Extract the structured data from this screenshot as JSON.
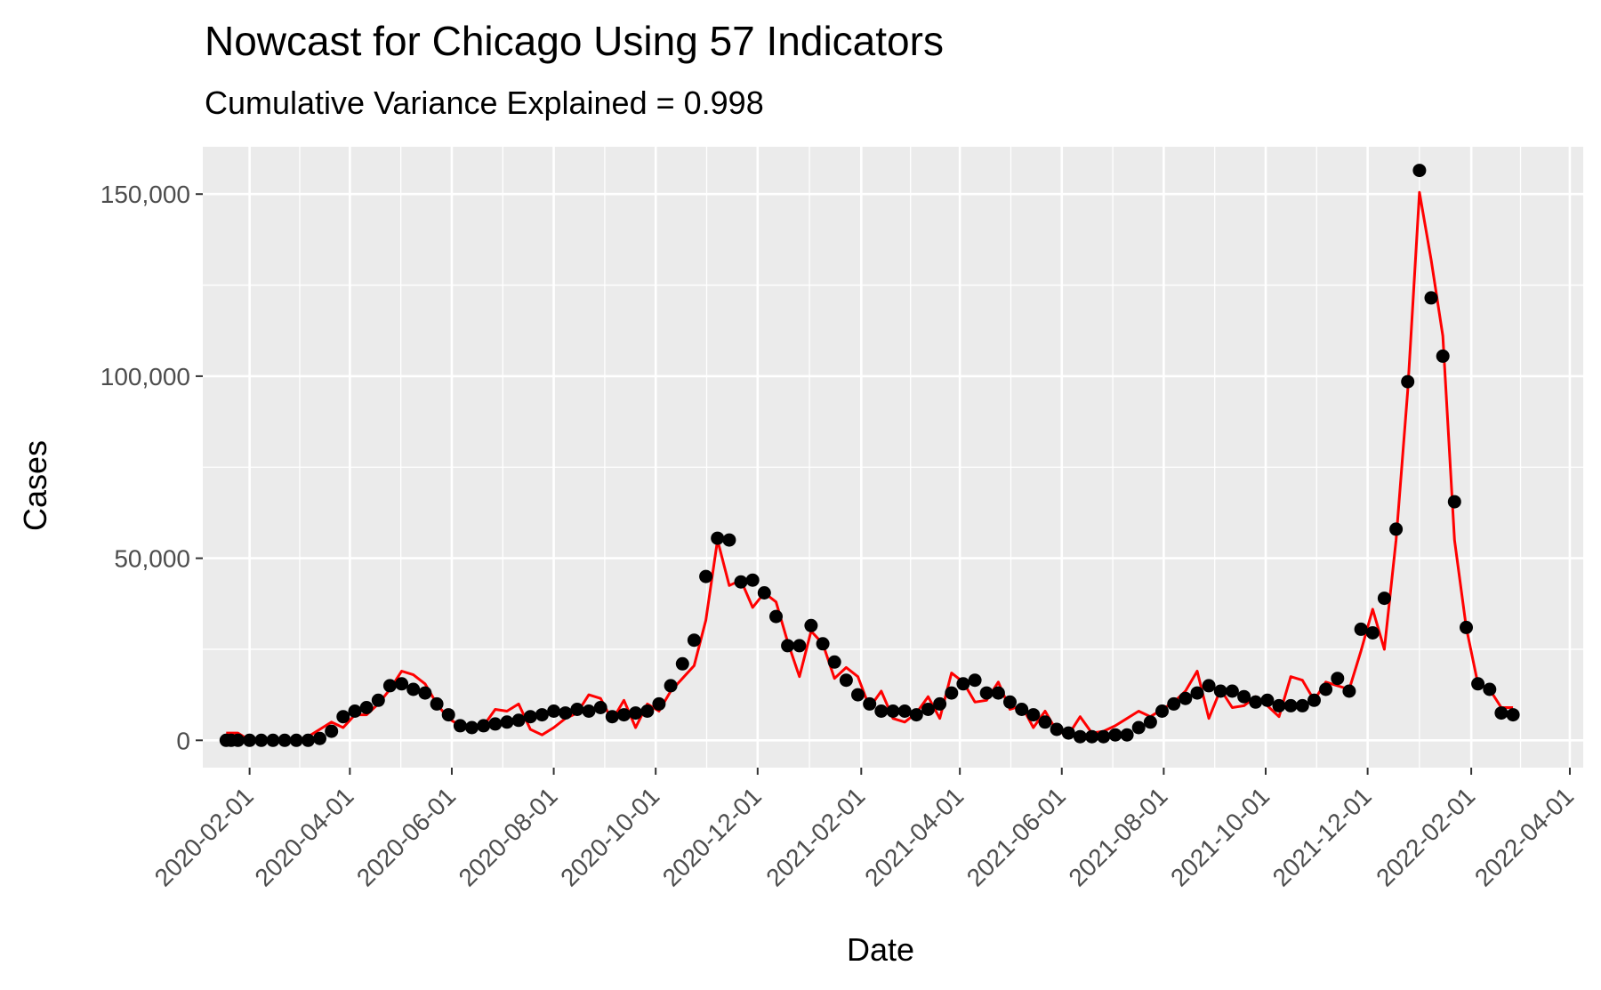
{
  "chart_data": {
    "type": "line",
    "title": "Nowcast for Chicago Using 57 Indicators",
    "subtitle": "Cumulative Variance Explained = 0.998",
    "xlabel": "Date",
    "ylabel": "Cases",
    "x_axis_type": "date",
    "xlim": [
      "2020-01-04",
      "2022-04-09"
    ],
    "ylim": [
      -7500,
      163000
    ],
    "grid": true,
    "legend": "none",
    "colors": {
      "panel_background": "#ebebeb",
      "grid": "#ffffff",
      "nowcast_line": "#ff0000",
      "observed_points": "#000000"
    },
    "x_ticks": [
      "2020-02-01",
      "2020-04-01",
      "2020-06-01",
      "2020-08-01",
      "2020-10-01",
      "2020-12-01",
      "2021-02-01",
      "2021-04-01",
      "2021-06-01",
      "2021-08-01",
      "2021-10-01",
      "2021-12-01",
      "2022-02-01",
      "2022-04-01"
    ],
    "x_tick_labels": [
      "2020-02-01",
      "2020-04-01",
      "2020-06-01",
      "2020-08-01",
      "2020-10-01",
      "2020-12-01",
      "2021-02-01",
      "2021-04-01",
      "2021-06-01",
      "2021-08-01",
      "2021-10-01",
      "2021-12-01",
      "2022-02-01",
      "2022-04-01"
    ],
    "y_ticks": [
      0,
      50000,
      100000,
      150000
    ],
    "y_tick_labels": [
      "0",
      "50,000",
      "100,000",
      "150,000"
    ],
    "observed": [
      [
        "2020-01-18",
        0
      ],
      [
        "2020-01-21",
        0
      ],
      [
        "2020-01-25",
        0
      ],
      [
        "2020-02-01",
        0
      ],
      [
        "2020-02-08",
        0
      ],
      [
        "2020-02-15",
        0
      ],
      [
        "2020-02-22",
        0
      ],
      [
        "2020-02-29",
        0
      ],
      [
        "2020-03-07",
        0
      ],
      [
        "2020-03-14",
        500
      ],
      [
        "2020-03-21",
        2500
      ],
      [
        "2020-03-28",
        6500
      ],
      [
        "2020-04-04",
        8000
      ],
      [
        "2020-04-11",
        9000
      ],
      [
        "2020-04-18",
        11000
      ],
      [
        "2020-04-25",
        15000
      ],
      [
        "2020-05-02",
        15500
      ],
      [
        "2020-05-09",
        14000
      ],
      [
        "2020-05-16",
        13000
      ],
      [
        "2020-05-23",
        10000
      ],
      [
        "2020-05-30",
        7000
      ],
      [
        "2020-06-06",
        4000
      ],
      [
        "2020-06-13",
        3500
      ],
      [
        "2020-06-20",
        4000
      ],
      [
        "2020-06-27",
        4500
      ],
      [
        "2020-07-04",
        5000
      ],
      [
        "2020-07-11",
        5500
      ],
      [
        "2020-07-18",
        6500
      ],
      [
        "2020-07-25",
        7000
      ],
      [
        "2020-08-01",
        8000
      ],
      [
        "2020-08-08",
        7500
      ],
      [
        "2020-08-15",
        8500
      ],
      [
        "2020-08-22",
        8000
      ],
      [
        "2020-08-29",
        9000
      ],
      [
        "2020-09-05",
        6500
      ],
      [
        "2020-09-12",
        7000
      ],
      [
        "2020-09-19",
        7500
      ],
      [
        "2020-09-26",
        8000
      ],
      [
        "2020-10-03",
        10000
      ],
      [
        "2020-10-10",
        15000
      ],
      [
        "2020-10-17",
        21000
      ],
      [
        "2020-10-24",
        27500
      ],
      [
        "2020-10-31",
        45000
      ],
      [
        "2020-11-07",
        55500
      ],
      [
        "2020-11-14",
        55000
      ],
      [
        "2020-11-21",
        43500
      ],
      [
        "2020-11-28",
        44000
      ],
      [
        "2020-12-05",
        40500
      ],
      [
        "2020-12-12",
        34000
      ],
      [
        "2020-12-19",
        26000
      ],
      [
        "2020-12-26",
        26000
      ],
      [
        "2021-01-02",
        31500
      ],
      [
        "2021-01-09",
        26500
      ],
      [
        "2021-01-16",
        21500
      ],
      [
        "2021-01-23",
        16500
      ],
      [
        "2021-01-30",
        12500
      ],
      [
        "2021-02-06",
        10000
      ],
      [
        "2021-02-13",
        8000
      ],
      [
        "2021-02-20",
        8000
      ],
      [
        "2021-02-27",
        8000
      ],
      [
        "2021-03-06",
        7000
      ],
      [
        "2021-03-13",
        8500
      ],
      [
        "2021-03-20",
        10000
      ],
      [
        "2021-03-27",
        13000
      ],
      [
        "2021-04-03",
        15500
      ],
      [
        "2021-04-10",
        16500
      ],
      [
        "2021-04-17",
        13000
      ],
      [
        "2021-04-24",
        13000
      ],
      [
        "2021-05-01",
        10500
      ],
      [
        "2021-05-08",
        8500
      ],
      [
        "2021-05-15",
        7000
      ],
      [
        "2021-05-22",
        5000
      ],
      [
        "2021-05-29",
        3000
      ],
      [
        "2021-06-05",
        2000
      ],
      [
        "2021-06-12",
        1000
      ],
      [
        "2021-06-19",
        1000
      ],
      [
        "2021-06-26",
        1000
      ],
      [
        "2021-07-03",
        1500
      ],
      [
        "2021-07-10",
        1500
      ],
      [
        "2021-07-17",
        3500
      ],
      [
        "2021-07-24",
        5000
      ],
      [
        "2021-07-31",
        8000
      ],
      [
        "2021-08-07",
        10000
      ],
      [
        "2021-08-14",
        11500
      ],
      [
        "2021-08-21",
        13000
      ],
      [
        "2021-08-28",
        15000
      ],
      [
        "2021-09-04",
        13500
      ],
      [
        "2021-09-11",
        13500
      ],
      [
        "2021-09-18",
        12000
      ],
      [
        "2021-09-25",
        10500
      ],
      [
        "2021-10-02",
        11000
      ],
      [
        "2021-10-09",
        9500
      ],
      [
        "2021-10-16",
        9500
      ],
      [
        "2021-10-23",
        9500
      ],
      [
        "2021-10-30",
        11000
      ],
      [
        "2021-11-06",
        14000
      ],
      [
        "2021-11-13",
        17000
      ],
      [
        "2021-11-20",
        13500
      ],
      [
        "2021-11-27",
        30500
      ],
      [
        "2021-12-04",
        29500
      ],
      [
        "2021-12-11",
        39000
      ],
      [
        "2021-12-18",
        58000
      ],
      [
        "2021-12-25",
        98500
      ],
      [
        "2022-01-01",
        156500
      ],
      [
        "2022-01-08",
        121500
      ],
      [
        "2022-01-15",
        105500
      ],
      [
        "2022-01-22",
        65500
      ],
      [
        "2022-01-29",
        31000
      ],
      [
        "2022-02-05",
        15500
      ],
      [
        "2022-02-12",
        14000
      ],
      [
        "2022-02-19",
        7500
      ],
      [
        "2022-02-26",
        7000
      ]
    ],
    "nowcast": [
      [
        "2020-01-18",
        2000
      ],
      [
        "2020-01-25",
        2000
      ],
      [
        "2020-02-01",
        0
      ],
      [
        "2020-02-08",
        0
      ],
      [
        "2020-02-15",
        0
      ],
      [
        "2020-02-22",
        0
      ],
      [
        "2020-02-29",
        0
      ],
      [
        "2020-03-07",
        1000
      ],
      [
        "2020-03-14",
        3000
      ],
      [
        "2020-03-21",
        5000
      ],
      [
        "2020-03-28",
        3500
      ],
      [
        "2020-04-04",
        7000
      ],
      [
        "2020-04-11",
        7000
      ],
      [
        "2020-04-18",
        10000
      ],
      [
        "2020-04-25",
        14000
      ],
      [
        "2020-05-02",
        19000
      ],
      [
        "2020-05-09",
        18000
      ],
      [
        "2020-05-16",
        15500
      ],
      [
        "2020-05-23",
        10000
      ],
      [
        "2020-05-30",
        6000
      ],
      [
        "2020-06-06",
        4000
      ],
      [
        "2020-06-13",
        4000
      ],
      [
        "2020-06-20",
        4000
      ],
      [
        "2020-06-27",
        8500
      ],
      [
        "2020-07-04",
        8000
      ],
      [
        "2020-07-11",
        10000
      ],
      [
        "2020-07-18",
        3000
      ],
      [
        "2020-07-25",
        1500
      ],
      [
        "2020-08-01",
        3500
      ],
      [
        "2020-08-08",
        6000
      ],
      [
        "2020-08-15",
        7500
      ],
      [
        "2020-08-22",
        12500
      ],
      [
        "2020-08-29",
        11500
      ],
      [
        "2020-09-05",
        5500
      ],
      [
        "2020-09-12",
        11000
      ],
      [
        "2020-09-19",
        3500
      ],
      [
        "2020-09-26",
        10000
      ],
      [
        "2020-10-03",
        8000
      ],
      [
        "2020-10-10",
        13500
      ],
      [
        "2020-10-17",
        17000
      ],
      [
        "2020-10-24",
        20500
      ],
      [
        "2020-10-31",
        33000
      ],
      [
        "2020-11-07",
        55000
      ],
      [
        "2020-11-14",
        42500
      ],
      [
        "2020-11-21",
        44000
      ],
      [
        "2020-11-28",
        36500
      ],
      [
        "2020-12-05",
        40500
      ],
      [
        "2020-12-12",
        38000
      ],
      [
        "2020-12-19",
        27000
      ],
      [
        "2020-12-26",
        17500
      ],
      [
        "2021-01-02",
        30000
      ],
      [
        "2021-01-09",
        26500
      ],
      [
        "2021-01-16",
        17000
      ],
      [
        "2021-01-23",
        20000
      ],
      [
        "2021-01-30",
        17500
      ],
      [
        "2021-02-06",
        9000
      ],
      [
        "2021-02-13",
        13500
      ],
      [
        "2021-02-20",
        6000
      ],
      [
        "2021-02-27",
        5000
      ],
      [
        "2021-03-06",
        7500
      ],
      [
        "2021-03-13",
        12000
      ],
      [
        "2021-03-20",
        6000
      ],
      [
        "2021-03-27",
        18500
      ],
      [
        "2021-04-03",
        16000
      ],
      [
        "2021-04-10",
        10500
      ],
      [
        "2021-04-17",
        11000
      ],
      [
        "2021-04-24",
        16000
      ],
      [
        "2021-05-01",
        8500
      ],
      [
        "2021-05-08",
        9500
      ],
      [
        "2021-05-15",
        3500
      ],
      [
        "2021-05-22",
        8000
      ],
      [
        "2021-05-29",
        2500
      ],
      [
        "2021-06-05",
        1500
      ],
      [
        "2021-06-12",
        6500
      ],
      [
        "2021-06-19",
        2000
      ],
      [
        "2021-06-26",
        2500
      ],
      [
        "2021-07-03",
        4000
      ],
      [
        "2021-07-10",
        6000
      ],
      [
        "2021-07-17",
        8000
      ],
      [
        "2021-07-24",
        6500
      ],
      [
        "2021-07-31",
        8500
      ],
      [
        "2021-08-07",
        10500
      ],
      [
        "2021-08-14",
        13500
      ],
      [
        "2021-08-21",
        19000
      ],
      [
        "2021-08-28",
        6000
      ],
      [
        "2021-09-04",
        14000
      ],
      [
        "2021-09-11",
        9000
      ],
      [
        "2021-09-18",
        9500
      ],
      [
        "2021-09-25",
        12000
      ],
      [
        "2021-10-02",
        9500
      ],
      [
        "2021-10-09",
        6500
      ],
      [
        "2021-10-16",
        17500
      ],
      [
        "2021-10-23",
        16500
      ],
      [
        "2021-10-30",
        11000
      ],
      [
        "2021-11-06",
        16000
      ],
      [
        "2021-11-13",
        15000
      ],
      [
        "2021-11-20",
        14000
      ],
      [
        "2021-11-27",
        24500
      ],
      [
        "2021-12-04",
        36000
      ],
      [
        "2021-12-11",
        25000
      ],
      [
        "2021-12-18",
        55000
      ],
      [
        "2021-12-25",
        96000
      ],
      [
        "2022-01-01",
        150500
      ],
      [
        "2022-01-08",
        132000
      ],
      [
        "2022-01-15",
        111000
      ],
      [
        "2022-01-22",
        55000
      ],
      [
        "2022-01-29",
        31000
      ],
      [
        "2022-02-05",
        15500
      ],
      [
        "2022-02-12",
        14000
      ],
      [
        "2022-02-19",
        9000
      ],
      [
        "2022-02-26",
        9000
      ]
    ]
  }
}
